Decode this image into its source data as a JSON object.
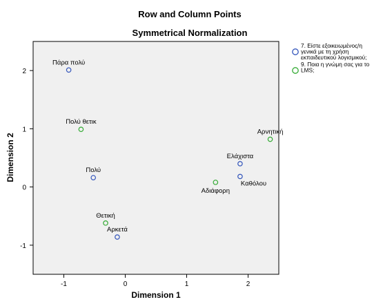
{
  "chart_data": {
    "type": "scatter",
    "title": "Row and Column Points",
    "subtitle": "Symmetrical Normalization",
    "xlabel": "Dimension 1",
    "ylabel": "Dimension 2",
    "xlim": [
      -1.5,
      2.5
    ],
    "ylim": [
      -1.5,
      2.5
    ],
    "x_ticks": [
      -1,
      0,
      1,
      2
    ],
    "y_ticks": [
      -1,
      0,
      1,
      2
    ],
    "grid": false,
    "legend_position": "top-right",
    "plot_background": "#f0f0f0",
    "series": [
      {
        "name": "7. Είστε εξοικειωμένος/η γενικά με τη χρήση εκπαιδευτικού λογισμικού;",
        "legend_lines": [
          "7. Είστε εξοικειωμένος/η",
          "γενικά με τη χρήση",
          "εκπαιδευτικού λογισμικού;"
        ],
        "color": "#3355bb",
        "marker": "open-circle",
        "points": [
          {
            "label": "Πάρα πολύ",
            "x": -0.92,
            "y": 2.01,
            "label_pos": "above"
          },
          {
            "label": "Πολύ",
            "x": -0.52,
            "y": 0.16,
            "label_pos": "above"
          },
          {
            "label": "Αρκετά",
            "x": -0.13,
            "y": -0.86,
            "label_pos": "above"
          },
          {
            "label": "Ελάχιστα",
            "x": 1.87,
            "y": 0.4,
            "label_pos": "above"
          },
          {
            "label": "Καθόλου",
            "x": 1.87,
            "y": 0.18,
            "label_pos": "below-right"
          }
        ]
      },
      {
        "name": "9. Ποια η γνώμη σας για το LMS;",
        "legend_lines": [
          "9. Ποια η γνώμη σας για το",
          "LMS;"
        ],
        "color": "#33aa33",
        "marker": "open-circle",
        "points": [
          {
            "label": "Πολύ θετικ",
            "x": -0.72,
            "y": 0.99,
            "label_pos": "above"
          },
          {
            "label": "Θετική",
            "x": -0.32,
            "y": -0.62,
            "label_pos": "above"
          },
          {
            "label": "Αδιάφορη",
            "x": 1.47,
            "y": 0.08,
            "label_pos": "below"
          },
          {
            "label": "Αρνητική",
            "x": 2.36,
            "y": 0.82,
            "label_pos": "above"
          }
        ]
      }
    ]
  }
}
